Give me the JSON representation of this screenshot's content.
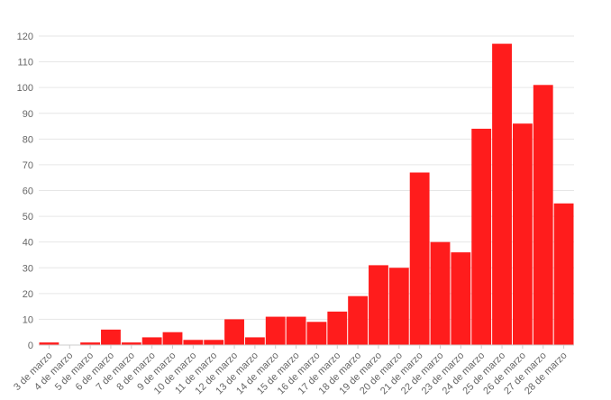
{
  "chart_data": {
    "type": "bar",
    "title": "",
    "xlabel": "",
    "ylabel": "",
    "ylim": [
      0,
      120
    ],
    "y_ticks": [
      "0",
      "10",
      "20",
      "30",
      "40",
      "50",
      "60",
      "70",
      "80",
      "90",
      "100",
      "110",
      "120"
    ],
    "grid": true,
    "legend": "none",
    "bar_color": "#ff1c1c",
    "categories": [
      "3 de marzo",
      "4 de marzo",
      "5 de marzo",
      "6 de marzo",
      "7 de marzo",
      "8 de marzo",
      "9 de marzo",
      "10 de marzo",
      "11 de marzo",
      "12 de marzo",
      "13 de marzo",
      "14 de marzo",
      "15 de marzo",
      "16 de marzo",
      "17 de marzo",
      "18 de marzo",
      "19 de marzo",
      "20 de marzo",
      "21 de marzo",
      "22 de marzo",
      "23 de marzo",
      "24 de marzo",
      "25 de marzo",
      "26 de marzo",
      "27 de marzo",
      "28 de marzo"
    ],
    "values": [
      1,
      0,
      1,
      6,
      1,
      3,
      5,
      2,
      2,
      10,
      3,
      11,
      11,
      9,
      13,
      19,
      31,
      30,
      67,
      40,
      36,
      84,
      117,
      86,
      101,
      55
    ]
  }
}
